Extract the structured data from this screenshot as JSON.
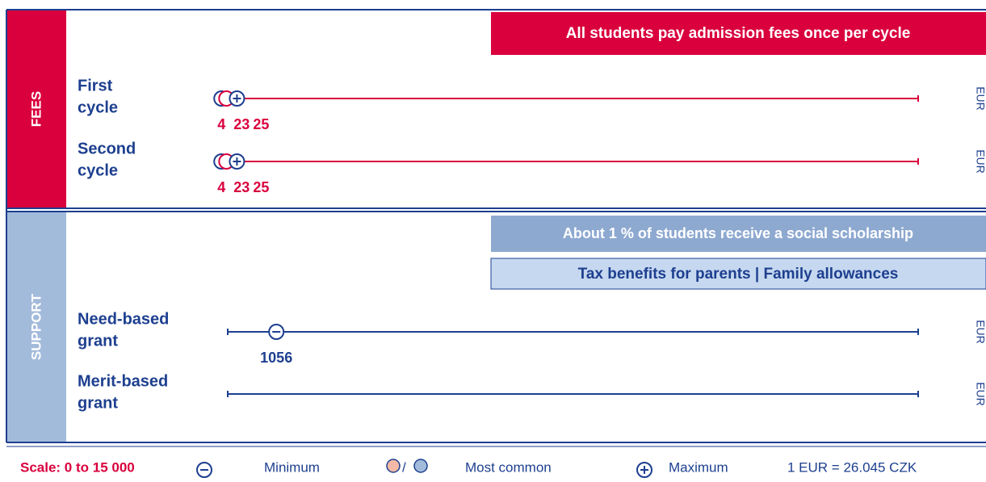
{
  "scale": {
    "min": 0,
    "max": 15000
  },
  "sections": [
    {
      "name": "FEES",
      "banners": [
        "All students pay admission fees once per cycle"
      ],
      "rows": [
        {
          "label": [
            "First",
            "cycle"
          ],
          "unit": "EUR",
          "most_common_1": 4,
          "most_common_2": 23,
          "maximum": 25
        },
        {
          "label": [
            "Second",
            "cycle"
          ],
          "unit": "EUR",
          "most_common_1": 4,
          "most_common_2": 23,
          "maximum": 25
        }
      ]
    },
    {
      "name": "SUPPORT",
      "banners": [
        "About 1 % of students receive a social scholarship",
        "Tax benefits for parents | Family allowances"
      ],
      "rows": [
        {
          "label": [
            "Need-based",
            "grant"
          ],
          "unit": "EUR",
          "minimum": 1056
        },
        {
          "label": [
            "Merit-based",
            "grant"
          ],
          "unit": "EUR"
        }
      ]
    }
  ],
  "legend": {
    "scale": "Scale: 0 to 15 000",
    "minimum": "Minimum",
    "separator": "/",
    "most_common": "Most common",
    "maximum": "Maximum",
    "exchange": "1 EUR = 26.045 CZK"
  }
}
